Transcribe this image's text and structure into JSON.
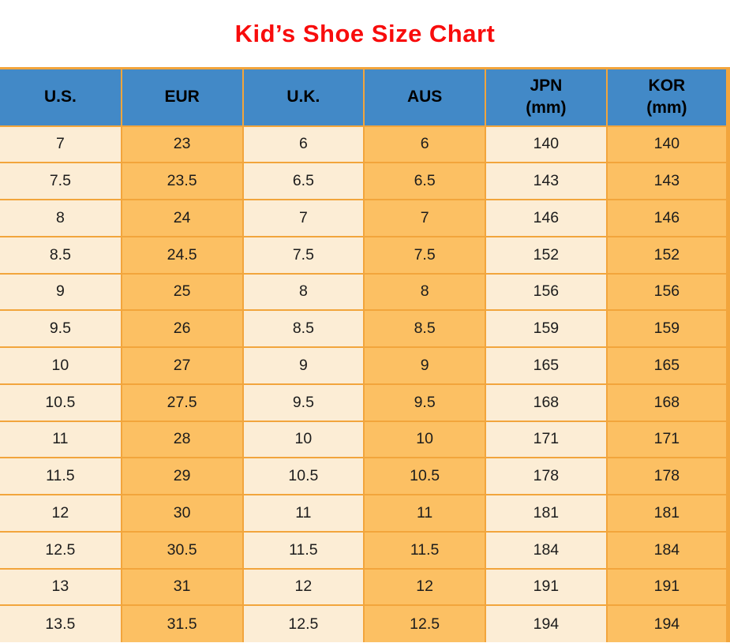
{
  "title": "Kid’s Shoe Size Chart",
  "colors": {
    "title_red": "#f80c0c",
    "header_blue": "#4289c7",
    "column_cream": "#fcedd5",
    "column_orange": "#fcc063",
    "grid_border_orange": "#f2a53c",
    "cell_text": "#1c1c1c",
    "page_background": "#ffffff"
  },
  "chart_data": {
    "type": "table",
    "title": "Kid’s Shoe Size Chart",
    "columns": [
      {
        "id": "us",
        "lines": [
          "U.S."
        ]
      },
      {
        "id": "eur",
        "lines": [
          "EUR"
        ]
      },
      {
        "id": "uk",
        "lines": [
          "U.K."
        ]
      },
      {
        "id": "aus",
        "lines": [
          "AUS"
        ]
      },
      {
        "id": "jpn",
        "lines": [
          "JPN",
          "(mm)"
        ]
      },
      {
        "id": "kor",
        "lines": [
          "KOR",
          "(mm)"
        ]
      }
    ],
    "rows": [
      [
        "7",
        "23",
        "6",
        "6",
        "140",
        "140"
      ],
      [
        "7.5",
        "23.5",
        "6.5",
        "6.5",
        "143",
        "143"
      ],
      [
        "8",
        "24",
        "7",
        "7",
        "146",
        "146"
      ],
      [
        "8.5",
        "24.5",
        "7.5",
        "7.5",
        "152",
        "152"
      ],
      [
        "9",
        "25",
        "8",
        "8",
        "156",
        "156"
      ],
      [
        "9.5",
        "26",
        "8.5",
        "8.5",
        "159",
        "159"
      ],
      [
        "10",
        "27",
        "9",
        "9",
        "165",
        "165"
      ],
      [
        "10.5",
        "27.5",
        "9.5",
        "9.5",
        "168",
        "168"
      ],
      [
        "11",
        "28",
        "10",
        "10",
        "171",
        "171"
      ],
      [
        "11.5",
        "29",
        "10.5",
        "10.5",
        "178",
        "178"
      ],
      [
        "12",
        "30",
        "11",
        "11",
        "181",
        "181"
      ],
      [
        "12.5",
        "30.5",
        "11.5",
        "11.5",
        "184",
        "184"
      ],
      [
        "13",
        "31",
        "12",
        "12",
        "191",
        "191"
      ],
      [
        "13.5",
        "31.5",
        "12.5",
        "12.5",
        "194",
        "194"
      ]
    ],
    "layout": {
      "column_background_pattern": [
        "cream",
        "orange",
        "cream",
        "orange",
        "cream",
        "orange"
      ],
      "grid": true,
      "header_background": "blue"
    }
  }
}
